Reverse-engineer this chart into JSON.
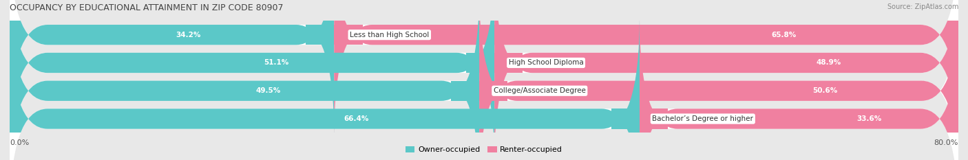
{
  "title": "OCCUPANCY BY EDUCATIONAL ATTAINMENT IN ZIP CODE 80907",
  "source": "Source: ZipAtlas.com",
  "categories": [
    "Less than High School",
    "High School Diploma",
    "College/Associate Degree",
    "Bachelor’s Degree or higher"
  ],
  "owner_pct": [
    34.2,
    51.1,
    49.5,
    66.4
  ],
  "renter_pct": [
    65.8,
    48.9,
    50.6,
    33.6
  ],
  "owner_color": "#5BC8C8",
  "renter_color": "#F080A0",
  "background_color": "#E8E8E8",
  "bar_bg_color": "#FFFFFF",
  "title_fontsize": 9,
  "source_fontsize": 7,
  "bar_label_fontsize": 7.5,
  "cat_label_fontsize": 7.5,
  "legend_fontsize": 8,
  "axis_label_fontsize": 8
}
